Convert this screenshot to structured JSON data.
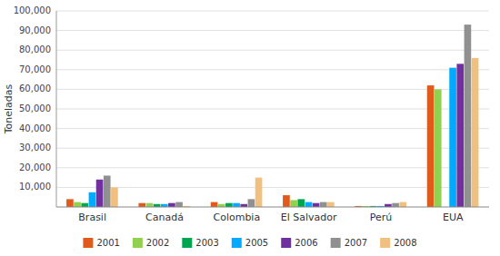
{
  "chart_data": {
    "type": "bar",
    "categories": [
      "Brasil",
      "Canadá",
      "Colombia",
      "El Salvador",
      "Perú",
      "EUA"
    ],
    "series": [
      {
        "name": "2001",
        "color": "#E05A1C",
        "values": [
          4000,
          2000,
          2500,
          6000,
          500,
          62000
        ]
      },
      {
        "name": "2002",
        "color": "#92D050",
        "values": [
          2500,
          2000,
          1500,
          3500,
          500,
          60000
        ]
      },
      {
        "name": "2003",
        "color": "#00A550",
        "values": [
          2000,
          1500,
          2000,
          4000,
          500,
          0
        ]
      },
      {
        "name": "2005",
        "color": "#00AAFF",
        "values": [
          7500,
          1500,
          2000,
          2500,
          500,
          71000
        ]
      },
      {
        "name": "2006",
        "color": "#7030A0",
        "values": [
          14000,
          2000,
          1500,
          2000,
          1500,
          73000
        ]
      },
      {
        "name": "2007",
        "color": "#909090",
        "values": [
          16000,
          2500,
          4000,
          2500,
          2000,
          93000
        ]
      },
      {
        "name": "2008",
        "color": "#F0C080",
        "values": [
          10000,
          500,
          15000,
          2500,
          2500,
          76000
        ]
      }
    ],
    "ylabel": "Toneladas",
    "ylim": [
      0,
      100000
    ],
    "yticks": [
      {
        "value": 10000,
        "label": "10,000"
      },
      {
        "value": 20000,
        "label": "20,000"
      },
      {
        "value": 30000,
        "label": "30,000"
      },
      {
        "value": 40000,
        "label": "40,000"
      },
      {
        "value": 50000,
        "label": "50,000"
      },
      {
        "value": 60000,
        "label": "60,000"
      },
      {
        "value": 70000,
        "label": "70,000"
      },
      {
        "value": 80000,
        "label": "80,000"
      },
      {
        "value": 90000,
        "label": "90,000"
      },
      {
        "value": 100000,
        "label": "100,000"
      }
    ],
    "grid": true,
    "legend": "bottom"
  }
}
